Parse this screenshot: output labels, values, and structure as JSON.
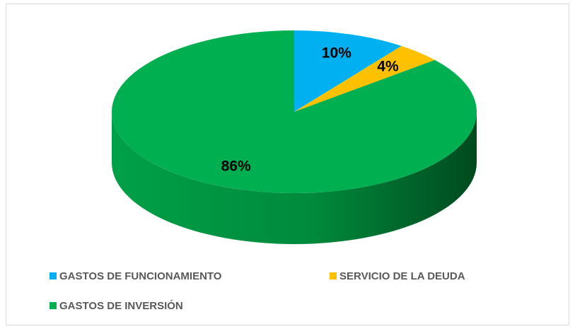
{
  "chart_data": {
    "type": "pie3d",
    "categories": [
      "GASTOS DE FUNCIONAMIENTO",
      "SERVICIO DE LA DEUDA",
      "GASTOS DE INVERSIÓN"
    ],
    "values": [
      10,
      4,
      86
    ],
    "value_labels": [
      "10%",
      "4%",
      "86%"
    ],
    "colors": [
      "#00b0f0",
      "#ffc000",
      "#00b050"
    ],
    "legend": "bottom"
  }
}
